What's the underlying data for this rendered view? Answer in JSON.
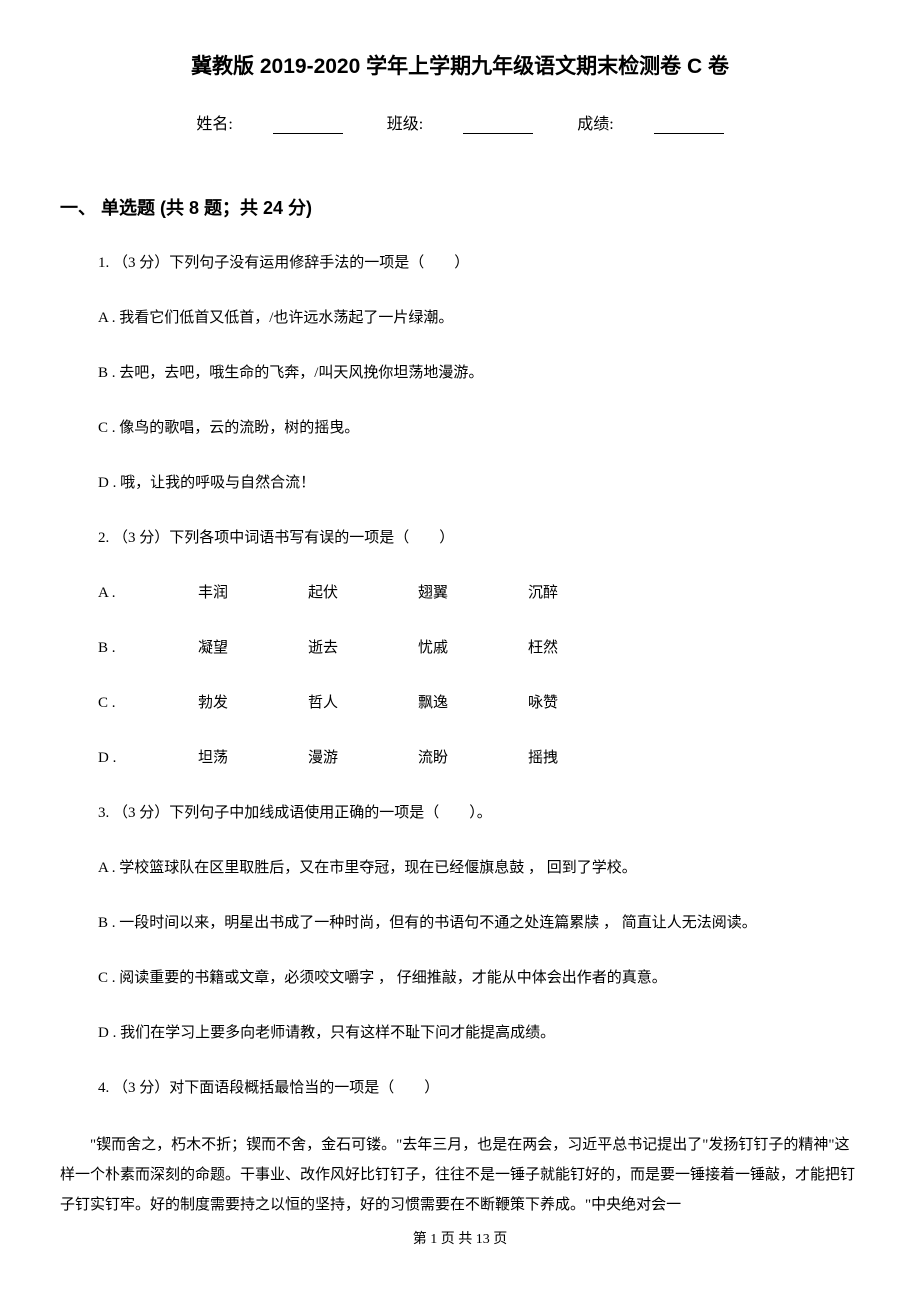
{
  "title": "冀教版 2019-2020 学年上学期九年级语文期末检测卷 C 卷",
  "info": {
    "name_label": "姓名:",
    "class_label": "班级:",
    "score_label": "成绩:"
  },
  "section1": {
    "header": "一、 单选题 (共 8 题；共 24 分)",
    "q1": {
      "stem": "1. （3 分）下列句子没有运用修辞手法的一项是（　　）",
      "a": "A . 我看它们低首又低首，/也许远水荡起了一片绿潮。",
      "b": "B . 去吧，去吧，哦生命的飞奔，/叫天风挽你坦荡地漫游。",
      "c": "C . 像鸟的歌唱，云的流盼，树的摇曳。",
      "d": "D . 哦，让我的呼吸与自然合流！"
    },
    "q2": {
      "stem": "2. （3 分）下列各项中词语书写有误的一项是（　　）",
      "a_label": "A .",
      "a_words": [
        "丰润",
        "起伏",
        "翅翼",
        "沉醉"
      ],
      "b_label": "B .",
      "b_words": [
        "凝望",
        "逝去",
        "忧戚",
        "枉然"
      ],
      "c_label": "C .",
      "c_words": [
        "勃发",
        "哲人",
        "飘逸",
        "咏赞"
      ],
      "d_label": "D .",
      "d_words": [
        "坦荡",
        "漫游",
        "流盼",
        "摇拽"
      ]
    },
    "q3": {
      "stem": "3. （3 分）下列句子中加线成语使用正确的一项是（　　）。",
      "a": "A . 学校篮球队在区里取胜后，又在市里夺冠，现在已经偃旗息鼓 ， 回到了学校。",
      "b": "B . 一段时间以来，明星出书成了一种时尚，但有的书语句不通之处连篇累牍 ， 简直让人无法阅读。",
      "c": "C . 阅读重要的书籍或文章，必须咬文嚼字 ， 仔细推敲，才能从中体会出作者的真意。",
      "d": "D . 我们在学习上要多向老师请教，只有这样不耻下问才能提高成绩。"
    },
    "q4": {
      "stem": "4. （3 分）对下面语段概括最恰当的一项是（　　）",
      "passage": "\"锲而舍之，朽木不折；锲而不舍，金石可镂。\"去年三月，也是在两会，习近平总书记提出了\"发扬钉钉子的精神\"这样一个朴素而深刻的命题。干事业、改作风好比钉钉子，往往不是一锤子就能钉好的，而是要一锤接着一锤敲，才能把钉子钉实钉牢。好的制度需要持之以恒的坚持，好的习惯需要在不断鞭策下养成。\"中央绝对会一"
    }
  },
  "footer": "第 1 页 共 13 页"
}
